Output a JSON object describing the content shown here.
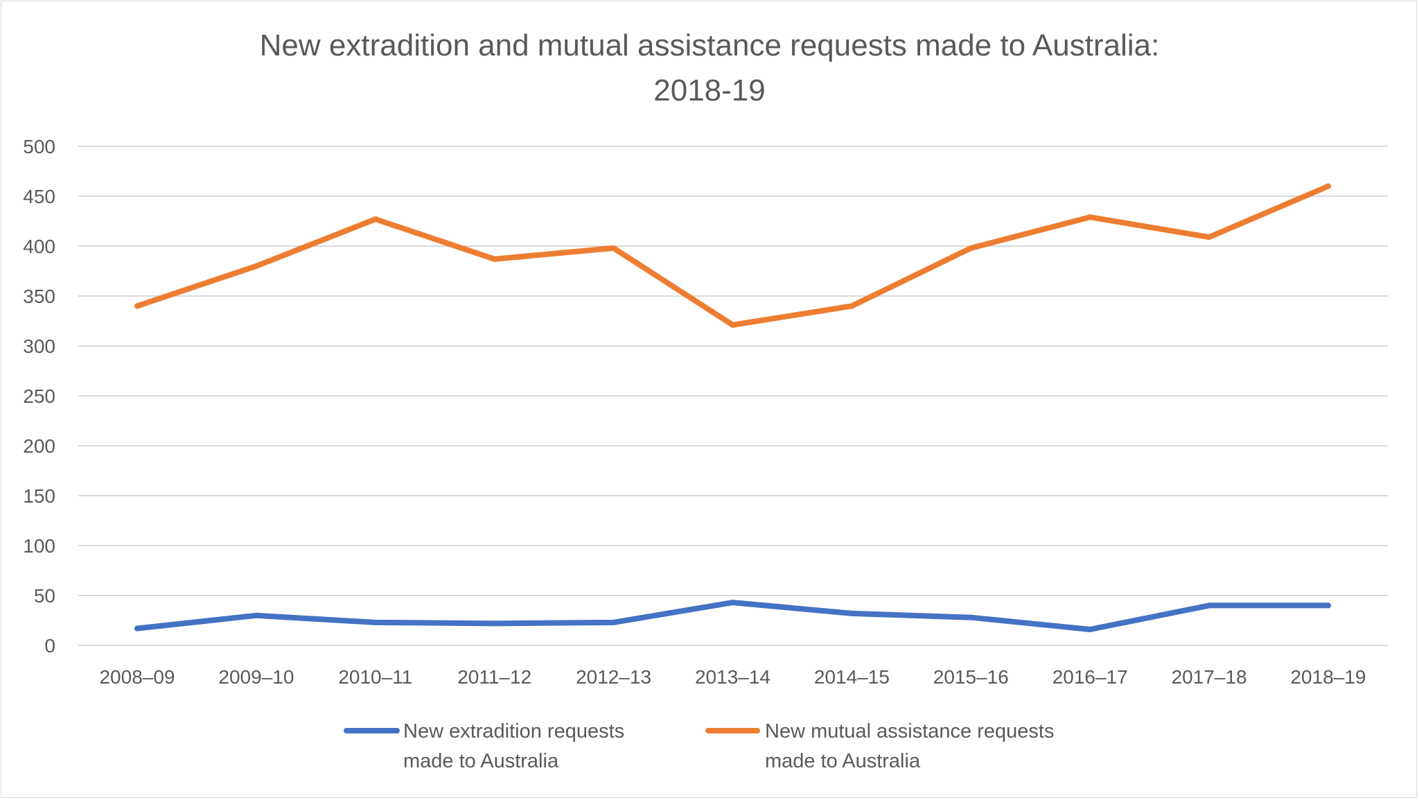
{
  "chart_data": {
    "type": "line",
    "title": "New extradition and mutual assistance requests made to Australia: 2018-19",
    "title_lines": [
      "New extradition and mutual assistance requests made to Australia:",
      "2018-19"
    ],
    "xlabel": "",
    "ylabel": "",
    "ylim": [
      0,
      500
    ],
    "yticks": [
      0,
      50,
      100,
      150,
      200,
      250,
      300,
      350,
      400,
      450,
      500
    ],
    "grid": true,
    "legend_position": "bottom",
    "categories": [
      "2008–09",
      "2009–10",
      "2010–11",
      "2011–12",
      "2012–13",
      "2013–14",
      "2014–15",
      "2015–16",
      "2016–17",
      "2017–18",
      "2018–19"
    ],
    "series": [
      {
        "name": "New extradition requests made to Australia",
        "name_lines": [
          "New extradition requests",
          "made to Australia"
        ],
        "color": "#4472c4",
        "values": [
          17,
          30,
          23,
          22,
          23,
          43,
          32,
          28,
          16,
          40,
          40
        ]
      },
      {
        "name": "New mutual assistance requests made to Australia",
        "name_lines": [
          "New mutual assistance requests",
          "made to Australia"
        ],
        "color": "#ed7d31",
        "values": [
          340,
          380,
          427,
          387,
          398,
          321,
          340,
          398,
          429,
          409,
          460
        ]
      }
    ]
  }
}
